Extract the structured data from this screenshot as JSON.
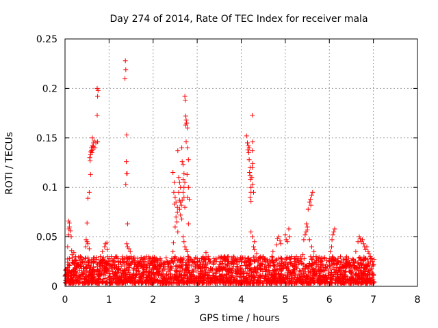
{
  "chart_data": {
    "type": "scatter",
    "title": "Day 274 of 2014, Rate Of TEC Index for receiver mala",
    "xlabel": "GPS time / hours",
    "ylabel": "ROTI / TECUs",
    "xlim": [
      0,
      8
    ],
    "ylim": [
      0,
      0.25
    ],
    "x_ticks": [
      0,
      1,
      2,
      3,
      4,
      5,
      6,
      7,
      8
    ],
    "x_tick_labels": [
      "0",
      "1",
      "2",
      "3",
      "4",
      "5",
      "6",
      "7",
      "8"
    ],
    "y_ticks": [
      0,
      0.05,
      0.1,
      0.15,
      0.2,
      0.25
    ],
    "y_tick_labels": [
      "0",
      "0.05",
      "0.1",
      "0.15",
      "0.2",
      "0.25"
    ],
    "grid": true,
    "marker": "+",
    "marker_color": "#ff0000",
    "baseline_band": {
      "x_range": [
        0.0,
        7.02
      ],
      "y_range": [
        0.003,
        0.03
      ],
      "note": "dense cloud of points across the whole time span"
    },
    "series": [
      {
        "name": "ROTI",
        "points": [
          [
            0.08,
            0.066
          ],
          [
            0.1,
            0.064
          ],
          [
            0.1,
            0.06
          ],
          [
            0.09,
            0.058
          ],
          [
            0.12,
            0.056
          ],
          [
            0.08,
            0.052
          ],
          [
            0.14,
            0.05
          ],
          [
            0.06,
            0.04
          ],
          [
            0.15,
            0.036
          ],
          [
            0.2,
            0.034
          ],
          [
            0.16,
            0.032
          ],
          [
            0.08,
            0.022
          ],
          [
            0.1,
            0.028
          ],
          [
            0.3,
            0.022
          ],
          [
            0.35,
            0.03
          ],
          [
            0.4,
            0.025
          ],
          [
            0.5,
            0.064
          ],
          [
            0.48,
            0.047
          ],
          [
            0.5,
            0.045
          ],
          [
            0.52,
            0.043
          ],
          [
            0.47,
            0.04
          ],
          [
            0.55,
            0.038
          ],
          [
            0.52,
            0.089
          ],
          [
            0.55,
            0.095
          ],
          [
            0.58,
            0.113
          ],
          [
            0.57,
            0.127
          ],
          [
            0.56,
            0.13
          ],
          [
            0.58,
            0.136
          ],
          [
            0.6,
            0.14
          ],
          [
            0.62,
            0.142
          ],
          [
            0.65,
            0.145
          ],
          [
            0.63,
            0.138
          ],
          [
            0.58,
            0.133
          ],
          [
            0.62,
            0.15
          ],
          [
            0.66,
            0.147
          ],
          [
            0.7,
            0.145
          ],
          [
            0.68,
            0.14
          ],
          [
            0.61,
            0.135
          ],
          [
            0.6,
            0.137
          ],
          [
            0.64,
            0.141
          ],
          [
            0.73,
            0.2
          ],
          [
            0.75,
            0.198
          ],
          [
            0.74,
            0.192
          ],
          [
            0.73,
            0.173
          ],
          [
            0.74,
            0.146
          ],
          [
            0.8,
            0.03
          ],
          [
            0.85,
            0.035
          ],
          [
            0.9,
            0.04
          ],
          [
            0.92,
            0.043
          ],
          [
            0.95,
            0.044
          ],
          [
            0.96,
            0.037
          ],
          [
            1.0,
            0.028
          ],
          [
            1.05,
            0.03
          ],
          [
            1.1,
            0.026
          ],
          [
            1.15,
            0.03
          ],
          [
            1.2,
            0.028
          ],
          [
            1.25,
            0.025
          ],
          [
            1.37,
            0.228
          ],
          [
            1.38,
            0.219
          ],
          [
            1.36,
            0.21
          ],
          [
            1.4,
            0.153
          ],
          [
            1.39,
            0.126
          ],
          [
            1.4,
            0.114
          ],
          [
            1.38,
            0.103
          ],
          [
            1.41,
            0.114
          ],
          [
            1.42,
            0.063
          ],
          [
            1.4,
            0.043
          ],
          [
            1.42,
            0.04
          ],
          [
            1.45,
            0.038
          ],
          [
            1.48,
            0.035
          ],
          [
            1.5,
            0.03
          ],
          [
            1.55,
            0.028
          ],
          [
            1.65,
            0.025
          ],
          [
            1.75,
            0.022
          ],
          [
            1.85,
            0.02
          ],
          [
            2.0,
            0.025
          ],
          [
            2.1,
            0.027
          ],
          [
            2.2,
            0.022
          ],
          [
            2.35,
            0.02
          ],
          [
            2.45,
            0.025
          ],
          [
            2.5,
            0.03
          ],
          [
            2.45,
            0.035
          ],
          [
            2.46,
            0.044
          ],
          [
            2.45,
            0.115
          ],
          [
            2.48,
            0.105
          ],
          [
            2.47,
            0.095
          ],
          [
            2.5,
            0.09
          ],
          [
            2.52,
            0.085
          ],
          [
            2.48,
            0.083
          ],
          [
            2.55,
            0.08
          ],
          [
            2.55,
            0.075
          ],
          [
            2.52,
            0.07
          ],
          [
            2.54,
            0.065
          ],
          [
            2.5,
            0.06
          ],
          [
            2.56,
            0.055
          ],
          [
            2.56,
            0.137
          ],
          [
            2.58,
            0.11
          ],
          [
            2.6,
            0.105
          ],
          [
            2.62,
            0.1
          ],
          [
            2.58,
            0.095
          ],
          [
            2.6,
            0.087
          ],
          [
            2.62,
            0.085
          ],
          [
            2.64,
            0.082
          ],
          [
            2.6,
            0.078
          ],
          [
            2.62,
            0.072
          ],
          [
            2.65,
            0.068
          ],
          [
            2.65,
            0.14
          ],
          [
            2.66,
            0.126
          ],
          [
            2.68,
            0.123
          ],
          [
            2.7,
            0.114
          ],
          [
            2.68,
            0.108
          ],
          [
            2.72,
            0.105
          ],
          [
            2.7,
            0.1
          ],
          [
            2.68,
            0.095
          ],
          [
            2.7,
            0.09
          ],
          [
            2.66,
            0.087
          ],
          [
            2.72,
            0.08
          ],
          [
            2.72,
            0.192
          ],
          [
            2.73,
            0.188
          ],
          [
            2.74,
            0.172
          ],
          [
            2.75,
            0.168
          ],
          [
            2.74,
            0.163
          ],
          [
            2.76,
            0.165
          ],
          [
            2.78,
            0.16
          ],
          [
            2.75,
            0.146
          ],
          [
            2.78,
            0.14
          ],
          [
            2.8,
            0.128
          ],
          [
            2.77,
            0.113
          ],
          [
            2.8,
            0.1
          ],
          [
            2.78,
            0.09
          ],
          [
            2.82,
            0.088
          ],
          [
            2.8,
            0.063
          ],
          [
            2.68,
            0.05
          ],
          [
            2.7,
            0.045
          ],
          [
            2.72,
            0.04
          ],
          [
            2.75,
            0.037
          ],
          [
            2.78,
            0.035
          ],
          [
            2.8,
            0.03
          ],
          [
            2.9,
            0.025
          ],
          [
            3.0,
            0.022
          ],
          [
            3.1,
            0.028
          ],
          [
            3.2,
            0.034
          ],
          [
            3.25,
            0.03
          ],
          [
            3.3,
            0.025
          ],
          [
            3.5,
            0.022
          ],
          [
            3.7,
            0.025
          ],
          [
            3.9,
            0.022
          ],
          [
            4.0,
            0.025
          ],
          [
            4.12,
            0.152
          ],
          [
            4.14,
            0.145
          ],
          [
            4.16,
            0.142
          ],
          [
            4.18,
            0.14
          ],
          [
            4.15,
            0.138
          ],
          [
            4.17,
            0.135
          ],
          [
            4.18,
            0.128
          ],
          [
            4.2,
            0.12
          ],
          [
            4.19,
            0.115
          ],
          [
            4.2,
            0.112
          ],
          [
            4.21,
            0.108
          ],
          [
            4.22,
            0.1
          ],
          [
            4.22,
            0.095
          ],
          [
            4.2,
            0.09
          ],
          [
            4.22,
            0.086
          ],
          [
            4.25,
            0.173
          ],
          [
            4.26,
            0.146
          ],
          [
            4.25,
            0.137
          ],
          [
            4.26,
            0.124
          ],
          [
            4.25,
            0.12
          ],
          [
            4.24,
            0.11
          ],
          [
            4.26,
            0.103
          ],
          [
            4.28,
            0.095
          ],
          [
            4.22,
            0.055
          ],
          [
            4.25,
            0.05
          ],
          [
            4.3,
            0.045
          ],
          [
            4.28,
            0.04
          ],
          [
            4.3,
            0.037
          ],
          [
            4.35,
            0.033
          ],
          [
            4.5,
            0.03
          ],
          [
            4.6,
            0.025
          ],
          [
            4.7,
            0.03
          ],
          [
            4.72,
            0.035
          ],
          [
            4.8,
            0.042
          ],
          [
            4.82,
            0.048
          ],
          [
            4.85,
            0.05
          ],
          [
            4.88,
            0.046
          ],
          [
            4.9,
            0.043
          ],
          [
            5.0,
            0.052
          ],
          [
            5.02,
            0.047
          ],
          [
            5.05,
            0.045
          ],
          [
            5.08,
            0.058
          ],
          [
            5.1,
            0.05
          ],
          [
            5.2,
            0.025
          ],
          [
            5.25,
            0.03
          ],
          [
            5.3,
            0.028
          ],
          [
            5.35,
            0.025
          ],
          [
            5.4,
            0.032
          ],
          [
            5.42,
            0.047
          ],
          [
            5.45,
            0.052
          ],
          [
            5.47,
            0.055
          ],
          [
            5.48,
            0.063
          ],
          [
            5.5,
            0.057
          ],
          [
            5.5,
            0.06
          ],
          [
            5.52,
            0.078
          ],
          [
            5.55,
            0.085
          ],
          [
            5.57,
            0.088
          ],
          [
            5.6,
            0.092
          ],
          [
            5.62,
            0.095
          ],
          [
            5.58,
            0.082
          ],
          [
            5.55,
            0.047
          ],
          [
            5.6,
            0.04
          ],
          [
            5.65,
            0.035
          ],
          [
            5.7,
            0.03
          ],
          [
            5.8,
            0.025
          ],
          [
            6.0,
            0.028
          ],
          [
            6.02,
            0.035
          ],
          [
            6.05,
            0.04
          ],
          [
            6.06,
            0.047
          ],
          [
            6.08,
            0.052
          ],
          [
            6.1,
            0.055
          ],
          [
            6.12,
            0.058
          ],
          [
            6.2,
            0.025
          ],
          [
            6.3,
            0.02
          ],
          [
            6.4,
            0.025
          ],
          [
            6.5,
            0.02
          ],
          [
            6.6,
            0.035
          ],
          [
            6.65,
            0.045
          ],
          [
            6.68,
            0.05
          ],
          [
            6.7,
            0.048
          ],
          [
            6.72,
            0.045
          ],
          [
            6.75,
            0.047
          ],
          [
            6.78,
            0.043
          ],
          [
            6.8,
            0.04
          ],
          [
            6.82,
            0.037
          ],
          [
            6.85,
            0.04
          ],
          [
            6.88,
            0.035
          ],
          [
            6.9,
            0.033
          ],
          [
            6.93,
            0.03
          ],
          [
            6.95,
            0.028
          ],
          [
            6.98,
            0.025
          ],
          [
            7.0,
            0.022
          ]
        ]
      }
    ]
  }
}
